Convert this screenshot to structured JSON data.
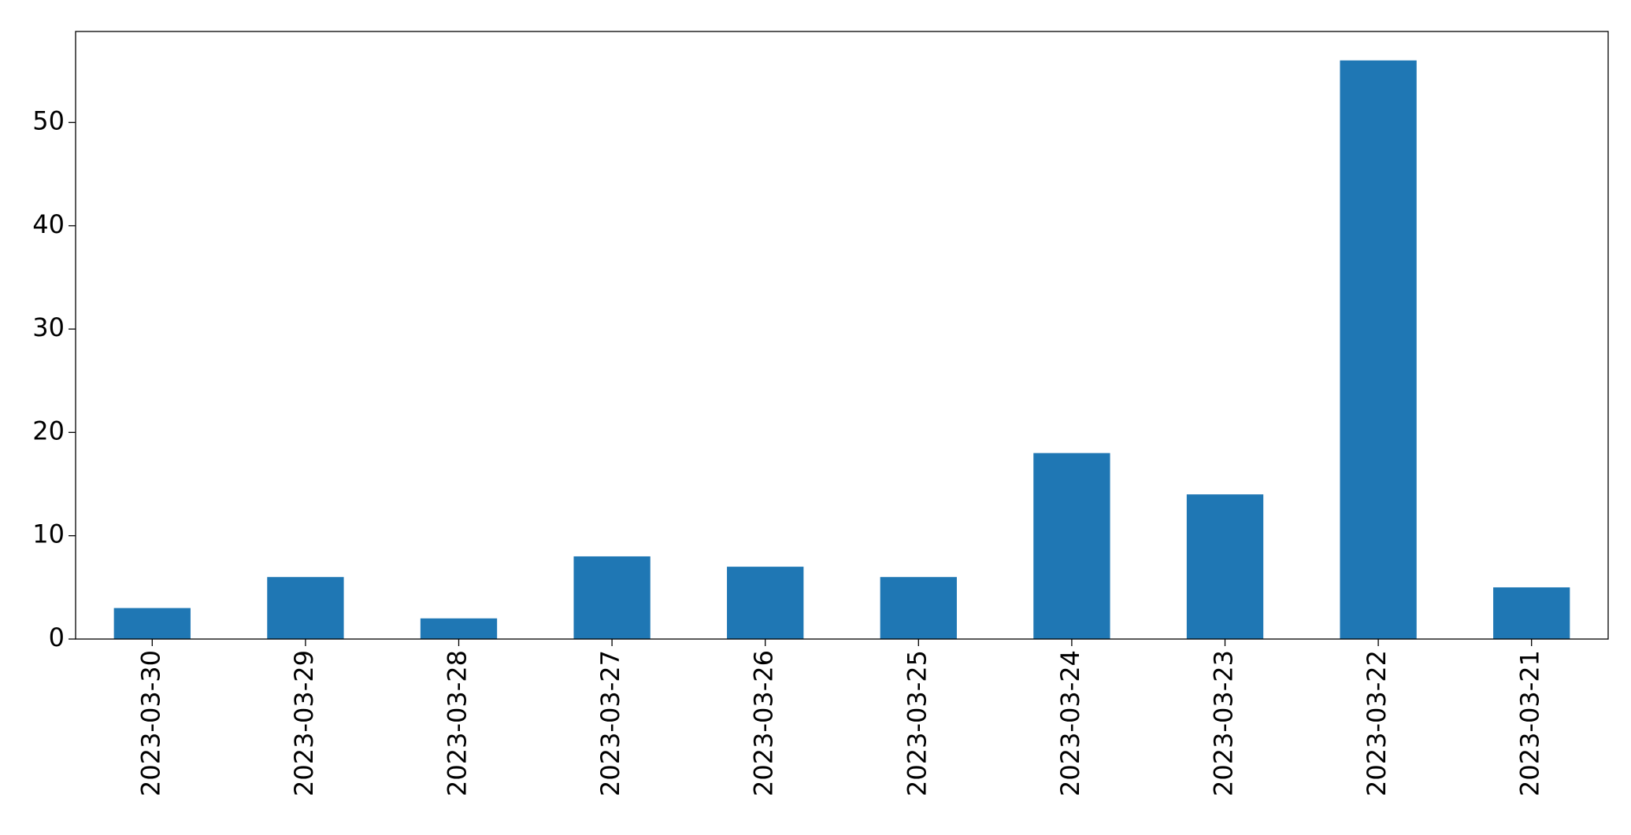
{
  "chart_data": {
    "type": "bar",
    "categories": [
      "2023-03-30",
      "2023-03-29",
      "2023-03-28",
      "2023-03-27",
      "2023-03-26",
      "2023-03-25",
      "2023-03-24",
      "2023-03-23",
      "2023-03-22",
      "2023-03-21"
    ],
    "values": [
      3,
      6,
      2,
      8,
      7,
      6,
      18,
      14,
      56,
      5
    ],
    "color": "#1f77b4",
    "ylim": [
      0,
      58.8
    ],
    "yticks": [
      0,
      10,
      20,
      30,
      40,
      50
    ],
    "grid": false
  }
}
